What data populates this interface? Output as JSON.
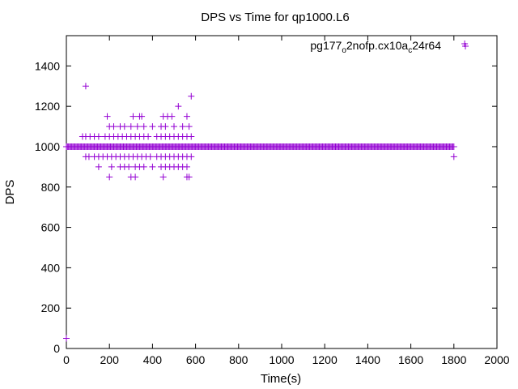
{
  "chart_data": {
    "type": "scatter",
    "title": "DPS vs Time for qp1000.L6",
    "xlabel": "Time(s)",
    "ylabel": "DPS",
    "xlim": [
      0,
      2000
    ],
    "ylim": [
      0,
      1550
    ],
    "xticks": [
      0,
      200,
      400,
      600,
      800,
      1000,
      1200,
      1400,
      1600,
      1800,
      2000
    ],
    "yticks": [
      0,
      200,
      400,
      600,
      800,
      1000,
      1200,
      1400
    ],
    "grid": false,
    "legend_position": "top-right",
    "series": [
      {
        "name": "pg177_o2nofp.cx10a_c24r64",
        "legend_parts": [
          {
            "text": "pg177",
            "sub": false
          },
          {
            "text": "o",
            "sub": true
          },
          {
            "text": "2nofp.cx10a",
            "sub": false
          },
          {
            "text": "c",
            "sub": true
          },
          {
            "text": "24r64",
            "sub": false
          }
        ],
        "color": "#9400d3",
        "marker": "plus",
        "points": [
          [
            0,
            50
          ],
          [
            90,
            1300
          ],
          [
            580,
            1250
          ],
          [
            520,
            1200
          ],
          [
            1850,
            1510
          ],
          [
            1800,
            950
          ],
          [
            190,
            1150
          ],
          [
            310,
            1150
          ],
          [
            340,
            1150
          ],
          [
            350,
            1150
          ],
          [
            450,
            1150
          ],
          [
            470,
            1150
          ],
          [
            490,
            1150
          ],
          [
            560,
            1150
          ],
          [
            200,
            1100
          ],
          [
            220,
            1100
          ],
          [
            250,
            1100
          ],
          [
            270,
            1100
          ],
          [
            300,
            1100
          ],
          [
            330,
            1100
          ],
          [
            360,
            1100
          ],
          [
            400,
            1100
          ],
          [
            440,
            1100
          ],
          [
            460,
            1100
          ],
          [
            500,
            1100
          ],
          [
            540,
            1100
          ],
          [
            570,
            1100
          ],
          [
            75,
            1050
          ],
          [
            90,
            1050
          ],
          [
            110,
            1050
          ],
          [
            130,
            1050
          ],
          [
            150,
            1050
          ],
          [
            180,
            1050
          ],
          [
            200,
            1050
          ],
          [
            220,
            1050
          ],
          [
            240,
            1050
          ],
          [
            260,
            1050
          ],
          [
            280,
            1050
          ],
          [
            300,
            1050
          ],
          [
            320,
            1050
          ],
          [
            340,
            1050
          ],
          [
            360,
            1050
          ],
          [
            380,
            1050
          ],
          [
            420,
            1050
          ],
          [
            440,
            1050
          ],
          [
            460,
            1050
          ],
          [
            480,
            1050
          ],
          [
            500,
            1050
          ],
          [
            520,
            1050
          ],
          [
            540,
            1050
          ],
          [
            560,
            1050
          ],
          [
            580,
            1050
          ],
          [
            90,
            950
          ],
          [
            105,
            950
          ],
          [
            130,
            950
          ],
          [
            150,
            950
          ],
          [
            170,
            950
          ],
          [
            190,
            950
          ],
          [
            210,
            950
          ],
          [
            230,
            950
          ],
          [
            250,
            950
          ],
          [
            270,
            950
          ],
          [
            290,
            950
          ],
          [
            310,
            950
          ],
          [
            330,
            950
          ],
          [
            350,
            950
          ],
          [
            370,
            950
          ],
          [
            390,
            950
          ],
          [
            420,
            950
          ],
          [
            440,
            950
          ],
          [
            460,
            950
          ],
          [
            480,
            950
          ],
          [
            500,
            950
          ],
          [
            520,
            950
          ],
          [
            540,
            950
          ],
          [
            560,
            950
          ],
          [
            580,
            950
          ],
          [
            150,
            900
          ],
          [
            210,
            900
          ],
          [
            250,
            900
          ],
          [
            270,
            900
          ],
          [
            290,
            900
          ],
          [
            320,
            900
          ],
          [
            340,
            900
          ],
          [
            360,
            900
          ],
          [
            400,
            900
          ],
          [
            440,
            900
          ],
          [
            460,
            900
          ],
          [
            480,
            900
          ],
          [
            500,
            900
          ],
          [
            520,
            900
          ],
          [
            540,
            900
          ],
          [
            560,
            900
          ],
          [
            200,
            850
          ],
          [
            300,
            850
          ],
          [
            320,
            850
          ],
          [
            450,
            850
          ],
          [
            560,
            850
          ],
          [
            570,
            850
          ]
        ],
        "dense_band": {
          "y": 1000,
          "x_from": 0,
          "x_to": 1800,
          "step": 5
        }
      }
    ]
  }
}
